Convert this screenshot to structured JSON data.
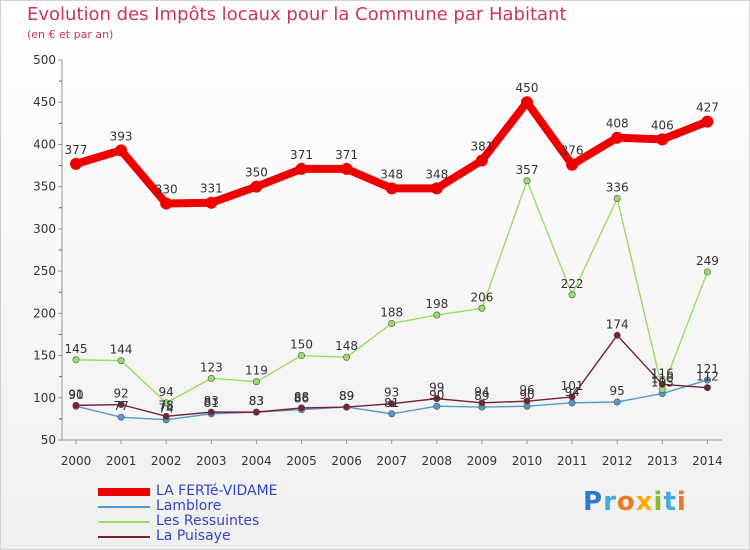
{
  "title": "Evolution des Impôts locaux pour la Commune par Habitant",
  "subtitle": "(en € et par an)",
  "logo_text": "Proxiti",
  "chart_data": {
    "type": "line",
    "x": [
      "2000",
      "2001",
      "2002",
      "2003",
      "2004",
      "2005",
      "2006",
      "2007",
      "2008",
      "2009",
      "2010",
      "2011",
      "2012",
      "2013",
      "2014"
    ],
    "ylim": [
      50,
      500
    ],
    "yticks": [
      50,
      100,
      150,
      200,
      250,
      300,
      350,
      400,
      450,
      500
    ],
    "grid": false,
    "legend_position": "bottom-left",
    "series": [
      {
        "name": "LA FERTé-VIDAME",
        "color": "#ee0000",
        "values": [
          377,
          393,
          330,
          331,
          350,
          371,
          371,
          348,
          348,
          381,
          450,
          376,
          408,
          406,
          427
        ]
      },
      {
        "name": "Lamblore",
        "color": "#5599cc",
        "values": [
          90,
          77,
          74,
          81,
          83,
          86,
          89,
          81,
          90,
          89,
          90,
          94,
          95,
          105,
          121
        ]
      },
      {
        "name": "Les Ressuintes",
        "color": "#99dd66",
        "values": [
          145,
          144,
          94,
          123,
          119,
          150,
          148,
          188,
          198,
          206,
          357,
          222,
          336,
          110,
          249
        ]
      },
      {
        "name": "La Puisaye",
        "color": "#772233",
        "values": [
          91,
          92,
          78,
          83,
          83,
          88,
          89,
          93,
          99,
          94,
          96,
          101,
          174,
          116,
          112
        ]
      }
    ]
  }
}
